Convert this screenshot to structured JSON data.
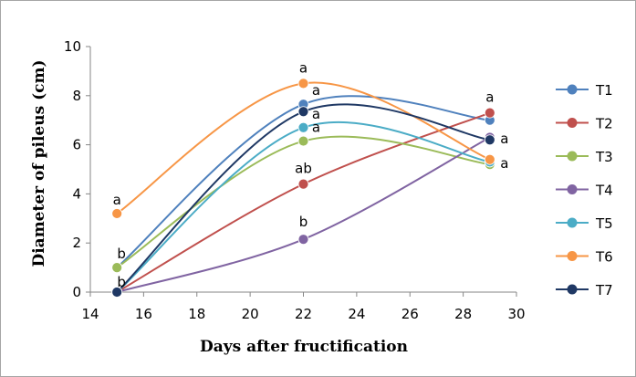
{
  "chart_data": {
    "type": "line",
    "xlabel": "Days after fructification",
    "ylabel": "Diameter of pileus (cm)",
    "xlim": [
      14,
      30
    ],
    "ylim": [
      0,
      10
    ],
    "xticks": [
      "14",
      "16",
      "18",
      "20",
      "22",
      "24",
      "26",
      "28",
      "30"
    ],
    "yticks": [
      "0",
      "2",
      "4",
      "6",
      "8",
      "10"
    ],
    "x": [
      15,
      22,
      29
    ],
    "legend_position": "right",
    "grid": false,
    "series": [
      {
        "name": "T1",
        "color": "#4f81bd",
        "values": [
          1.0,
          7.65,
          7.0
        ],
        "labels": [
          "b",
          "a",
          "a"
        ]
      },
      {
        "name": "T2",
        "color": "#c0504d",
        "values": [
          0.0,
          4.4,
          7.3
        ],
        "labels": [
          "b",
          "ab",
          "a"
        ]
      },
      {
        "name": "T3",
        "color": "#9bbb59",
        "values": [
          1.0,
          6.15,
          5.2
        ],
        "labels": [
          "b",
          "a",
          "a"
        ]
      },
      {
        "name": "T4",
        "color": "#8064a2",
        "values": [
          0.0,
          2.15,
          6.3
        ],
        "labels": [
          "b",
          "b",
          "a"
        ]
      },
      {
        "name": "T5",
        "color": "#4bacc6",
        "values": [
          0.0,
          6.7,
          5.3
        ],
        "labels": [
          "b",
          "a",
          "a"
        ]
      },
      {
        "name": "T6",
        "color": "#f79646",
        "values": [
          3.2,
          8.5,
          5.4
        ],
        "labels": [
          "a",
          "a",
          "a"
        ]
      },
      {
        "name": "T7",
        "color": "#1f3864",
        "values": [
          0.0,
          7.35,
          6.2
        ],
        "labels": [
          "b",
          "a",
          "a"
        ]
      }
    ],
    "annotations": [
      {
        "text": "a",
        "x": 15,
        "y": 3.2,
        "series": "T6"
      },
      {
        "text": "b",
        "x": 15,
        "y": 1.0,
        "series": "T1"
      },
      {
        "text": "b",
        "x": 15,
        "y": 0.0,
        "series": "T7"
      },
      {
        "text": "a",
        "x": 22,
        "y": 8.5,
        "series": "T6"
      },
      {
        "text": "a",
        "x": 22,
        "y": 7.65,
        "series": "T1"
      },
      {
        "text": "a",
        "x": 22,
        "y": 6.7,
        "series": "T5"
      },
      {
        "text": "a",
        "x": 22,
        "y": 6.15,
        "series": "T3"
      },
      {
        "text": "ab",
        "x": 22,
        "y": 4.4,
        "series": "T2"
      },
      {
        "text": "b",
        "x": 22,
        "y": 2.15,
        "series": "T4"
      },
      {
        "text": "a",
        "x": 29,
        "y": 7.3,
        "series": "T2"
      },
      {
        "text": "a",
        "x": 29,
        "y": 6.2,
        "series": "T7"
      },
      {
        "text": "a",
        "x": 29,
        "y": 5.2,
        "series": "T3"
      }
    ]
  }
}
